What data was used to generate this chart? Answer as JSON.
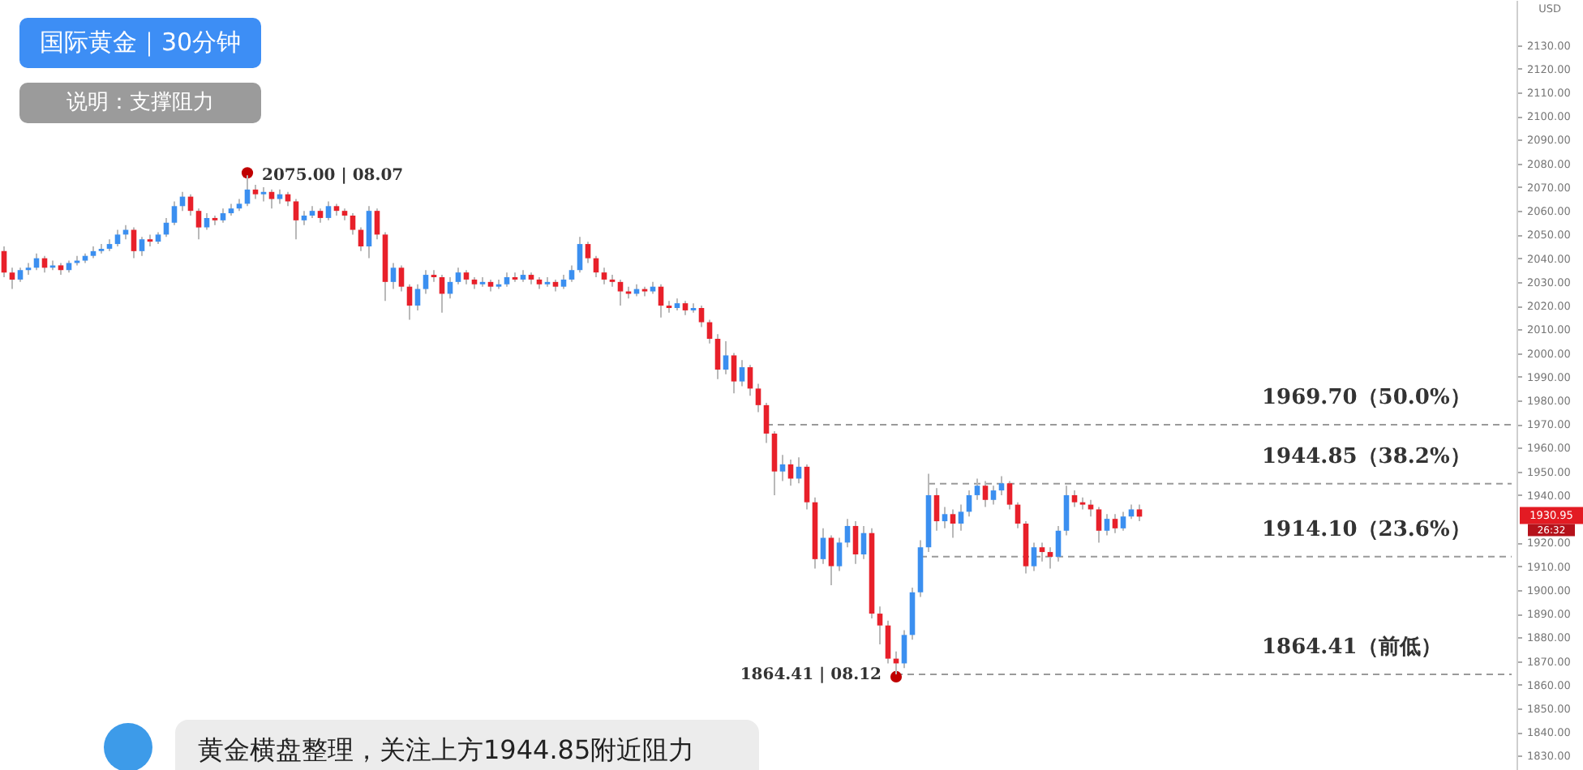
{
  "chart_data": {
    "type": "candlestick",
    "title": "国际黄金｜30分钟",
    "subtitle": "说明：支撑阻力",
    "ylabel": "USD",
    "categories": [
      null,
      null,
      null,
      null,
      null,
      null,
      null,
      null,
      null,
      null,
      null,
      null,
      null,
      null,
      null,
      null,
      null,
      null,
      null,
      null,
      null,
      null,
      null,
      null,
      null,
      null,
      null,
      null,
      null,
      null,
      null,
      null,
      null,
      null,
      null,
      null,
      null,
      null,
      null,
      null,
      null,
      null,
      null,
      null,
      null,
      null,
      null,
      null,
      null,
      null,
      null,
      null,
      null,
      null,
      null,
      null,
      null,
      null,
      null,
      null,
      null,
      null,
      null,
      null,
      null,
      null,
      null,
      null,
      null,
      null,
      null,
      null,
      null,
      null,
      null,
      null,
      null,
      null,
      null,
      null,
      null,
      null,
      null,
      null,
      null,
      null,
      null,
      null,
      null,
      null,
      null,
      null,
      null,
      null,
      null,
      null,
      null,
      null,
      null,
      null,
      null,
      null,
      null,
      null,
      null,
      null,
      null,
      null,
      null,
      null,
      null,
      null,
      null,
      null,
      null,
      null,
      null,
      null,
      null,
      null,
      null,
      null,
      null,
      null,
      null,
      null,
      null,
      null,
      null,
      null,
      null,
      null,
      null,
      null,
      null,
      null,
      null,
      null,
      null,
      null,
      null,
      null,
      null,
      null,
      null,
      null,
      null,
      null,
      null,
      null,
      null,
      null,
      null,
      null,
      null,
      null,
      null,
      null,
      null,
      null,
      null,
      null,
      null,
      null,
      null,
      null,
      null,
      null,
      null,
      null,
      null,
      null,
      null,
      null,
      null,
      null,
      null,
      null,
      null,
      null,
      null,
      null,
      null,
      null,
      null,
      null,
      null
    ],
    "ohlc": [
      [
        2043,
        2045,
        2032,
        2034
      ],
      [
        2034,
        2036,
        2027,
        2031
      ],
      [
        2031,
        2036,
        2030,
        2035
      ],
      [
        2035,
        2038,
        2033,
        2036
      ],
      [
        2036,
        2042,
        2035,
        2040
      ],
      [
        2040,
        2041,
        2034,
        2036
      ],
      [
        2036,
        2039,
        2035,
        2037
      ],
      [
        2037,
        2038,
        2033,
        2035
      ],
      [
        2035,
        2039,
        2034,
        2038
      ],
      [
        2038,
        2041,
        2037,
        2039
      ],
      [
        2039,
        2042,
        2038,
        2041
      ],
      [
        2041,
        2045,
        2040,
        2043
      ],
      [
        2043,
        2046,
        2042,
        2044
      ],
      [
        2044,
        2048,
        2043,
        2046
      ],
      [
        2046,
        2052,
        2045,
        2050
      ],
      [
        2050,
        2054,
        2048,
        2052
      ],
      [
        2052,
        2053,
        2040,
        2043
      ],
      [
        2043,
        2049,
        2041,
        2048
      ],
      [
        2048,
        2050,
        2045,
        2047
      ],
      [
        2047,
        2051,
        2046,
        2050
      ],
      [
        2050,
        2057,
        2049,
        2055
      ],
      [
        2055,
        2064,
        2054,
        2062
      ],
      [
        2062,
        2068,
        2060,
        2066
      ],
      [
        2066,
        2067,
        2058,
        2060
      ],
      [
        2060,
        2061,
        2048,
        2053
      ],
      [
        2053,
        2059,
        2052,
        2057
      ],
      [
        2057,
        2058,
        2054,
        2056
      ],
      [
        2056,
        2061,
        2055,
        2059
      ],
      [
        2059,
        2063,
        2058,
        2061
      ],
      [
        2061,
        2065,
        2060,
        2063
      ],
      [
        2063,
        2075,
        2062,
        2069
      ],
      [
        2069,
        2071,
        2065,
        2067
      ],
      [
        2067,
        2070,
        2064,
        2068
      ],
      [
        2068,
        2069,
        2061,
        2065
      ],
      [
        2065,
        2069,
        2063,
        2067
      ],
      [
        2067,
        2068,
        2062,
        2064
      ],
      [
        2064,
        2065,
        2048,
        2056
      ],
      [
        2056,
        2060,
        2054,
        2058
      ],
      [
        2058,
        2062,
        2057,
        2060
      ],
      [
        2060,
        2061,
        2055,
        2057
      ],
      [
        2057,
        2064,
        2056,
        2062
      ],
      [
        2062,
        2063,
        2058,
        2060
      ],
      [
        2060,
        2061,
        2056,
        2058
      ],
      [
        2058,
        2059,
        2050,
        2052
      ],
      [
        2052,
        2053,
        2043,
        2045
      ],
      [
        2045,
        2062,
        2040,
        2060
      ],
      [
        2060,
        2061,
        2048,
        2050
      ],
      [
        2050,
        2051,
        2022,
        2030
      ],
      [
        2030,
        2038,
        2027,
        2036
      ],
      [
        2036,
        2037,
        2026,
        2028
      ],
      [
        2028,
        2029,
        2014,
        2020
      ],
      [
        2020,
        2029,
        2018,
        2027
      ],
      [
        2027,
        2035,
        2025,
        2033
      ],
      [
        2033,
        2035,
        2030,
        2032
      ],
      [
        2032,
        2033,
        2017,
        2025
      ],
      [
        2025,
        2032,
        2023,
        2030
      ],
      [
        2030,
        2036,
        2029,
        2034
      ],
      [
        2034,
        2035,
        2029,
        2031
      ],
      [
        2031,
        2032,
        2027,
        2029
      ],
      [
        2029,
        2032,
        2028,
        2030
      ],
      [
        2030,
        2031,
        2026,
        2028
      ],
      [
        2028,
        2031,
        2027,
        2029
      ],
      [
        2029,
        2034,
        2028,
        2032
      ],
      [
        2032,
        2034,
        2030,
        2031
      ],
      [
        2031,
        2035,
        2030,
        2033
      ],
      [
        2033,
        2034,
        2029,
        2031
      ],
      [
        2031,
        2032,
        2027,
        2029
      ],
      [
        2029,
        2032,
        2028,
        2030
      ],
      [
        2030,
        2031,
        2026,
        2028
      ],
      [
        2028,
        2033,
        2027,
        2031
      ],
      [
        2031,
        2037,
        2030,
        2035
      ],
      [
        2035,
        2049,
        2034,
        2046
      ],
      [
        2046,
        2047,
        2038,
        2040
      ],
      [
        2040,
        2041,
        2032,
        2034
      ],
      [
        2034,
        2036,
        2029,
        2031
      ],
      [
        2031,
        2033,
        2028,
        2030
      ],
      [
        2030,
        2031,
        2020,
        2026
      ],
      [
        2026,
        2028,
        2023,
        2025
      ],
      [
        2025,
        2029,
        2024,
        2027
      ],
      [
        2027,
        2028,
        2024,
        2026
      ],
      [
        2026,
        2030,
        2025,
        2028
      ],
      [
        2028,
        2029,
        2015,
        2020
      ],
      [
        2020,
        2022,
        2017,
        2019
      ],
      [
        2019,
        2023,
        2018,
        2021
      ],
      [
        2021,
        2022,
        2016,
        2018
      ],
      [
        2018,
        2021,
        2017,
        2019
      ],
      [
        2019,
        2020,
        2011,
        2013
      ],
      [
        2013,
        2014,
        2004,
        2006
      ],
      [
        2006,
        2008,
        1989,
        1993
      ],
      [
        1993,
        2005,
        1991,
        1999
      ],
      [
        1999,
        2000,
        1983,
        1988
      ],
      [
        1988,
        1997,
        1986,
        1994
      ],
      [
        1994,
        1995,
        1982,
        1985
      ],
      [
        1985,
        1987,
        1975,
        1978
      ],
      [
        1978,
        1979,
        1962,
        1966
      ],
      [
        1966,
        1967,
        1940,
        1950
      ],
      [
        1950,
        1957,
        1946,
        1953
      ],
      [
        1953,
        1955,
        1944,
        1947
      ],
      [
        1947,
        1956,
        1945,
        1952
      ],
      [
        1952,
        1953,
        1934,
        1937
      ],
      [
        1937,
        1939,
        1909,
        1913
      ],
      [
        1913,
        1926,
        1911,
        1922
      ],
      [
        1922,
        1923,
        1902,
        1910
      ],
      [
        1910,
        1922,
        1908,
        1920
      ],
      [
        1920,
        1930,
        1918,
        1927
      ],
      [
        1927,
        1929,
        1911,
        1915
      ],
      [
        1915,
        1927,
        1913,
        1924
      ],
      [
        1924,
        1926,
        1888,
        1890
      ],
      [
        1890,
        1893,
        1877,
        1885
      ],
      [
        1885,
        1887,
        1869,
        1871
      ],
      [
        1871,
        1874,
        1864.41,
        1869
      ],
      [
        1869,
        1883,
        1867,
        1881
      ],
      [
        1881,
        1901,
        1879,
        1899
      ],
      [
        1899,
        1921,
        1897,
        1918
      ],
      [
        1918,
        1949,
        1916,
        1940
      ],
      [
        1940,
        1943,
        1925,
        1929
      ],
      [
        1929,
        1935,
        1926,
        1932
      ],
      [
        1932,
        1934,
        1922,
        1928
      ],
      [
        1928,
        1936,
        1925,
        1933
      ],
      [
        1933,
        1942,
        1931,
        1940
      ],
      [
        1940,
        1947,
        1938,
        1944
      ],
      [
        1944,
        1946,
        1935,
        1938
      ],
      [
        1938,
        1944,
        1936,
        1942
      ],
      [
        1942,
        1948,
        1940,
        1945
      ],
      [
        1945,
        1946,
        1934,
        1936
      ],
      [
        1936,
        1937,
        1926,
        1928
      ],
      [
        1928,
        1929,
        1907,
        1910
      ],
      [
        1910,
        1920,
        1908,
        1918
      ],
      [
        1918,
        1920,
        1912,
        1916
      ],
      [
        1916,
        1918,
        1909,
        1914
      ],
      [
        1914,
        1927,
        1912,
        1925
      ],
      [
        1925,
        1944,
        1923,
        1940
      ],
      [
        1940,
        1942,
        1935,
        1937
      ],
      [
        1937,
        1939,
        1934,
        1936
      ],
      [
        1936,
        1938,
        1931,
        1934
      ],
      [
        1934,
        1935,
        1920,
        1925
      ],
      [
        1925,
        1932,
        1923,
        1930
      ],
      [
        1930,
        1932,
        1924,
        1926
      ],
      [
        1926,
        1933,
        1925,
        1931
      ],
      [
        1931,
        1936,
        1930,
        1934
      ],
      [
        1934,
        1936,
        1929,
        1930.95
      ],
      null,
      null,
      null,
      null,
      null,
      null,
      null,
      null,
      null,
      null,
      null,
      null,
      null,
      null,
      null,
      null,
      null,
      null,
      null,
      null,
      null,
      null,
      null,
      null,
      null,
      null,
      null,
      null,
      null,
      null,
      null,
      null,
      null,
      null,
      null,
      null,
      null,
      null,
      null,
      null,
      null,
      null,
      null,
      null,
      null,
      null
    ],
    "colors": [
      "#e8202a",
      "#e8202a",
      "#3b8ff0",
      "#3b8ff0",
      "#3b8ff0",
      "#e8202a",
      "#3b8ff0",
      "#e8202a",
      "#3b8ff0",
      "#3b8ff0",
      "#3b8ff0",
      "#3b8ff0",
      "#3b8ff0",
      "#3b8ff0",
      "#3b8ff0",
      "#3b8ff0",
      "#e8202a",
      "#3b8ff0",
      "#e8202a",
      "#3b8ff0",
      "#3b8ff0",
      "#3b8ff0",
      "#3b8ff0",
      "#e8202a",
      "#e8202a",
      "#3b8ff0",
      "#e8202a",
      "#3b8ff0",
      "#3b8ff0",
      "#3b8ff0",
      "#3b8ff0",
      "#e8202a",
      "#3b8ff0",
      "#e8202a",
      "#3b8ff0",
      "#e8202a",
      "#e8202a",
      "#3b8ff0",
      "#3b8ff0",
      "#e8202a",
      "#3b8ff0",
      "#e8202a",
      "#e8202a",
      "#e8202a",
      "#e8202a",
      "#3b8ff0",
      "#e8202a",
      "#e8202a",
      "#3b8ff0",
      "#e8202a",
      "#e8202a",
      "#3b8ff0",
      "#3b8ff0",
      "#e8202a",
      "#e8202a",
      "#3b8ff0",
      "#3b8ff0",
      "#e8202a",
      "#e8202a",
      "#3b8ff0",
      "#e8202a",
      "#3b8ff0",
      "#3b8ff0",
      "#e8202a",
      "#3b8ff0",
      "#e8202a",
      "#e8202a",
      "#3b8ff0",
      "#e8202a",
      "#3b8ff0",
      "#3b8ff0",
      "#3b8ff0",
      "#e8202a",
      "#e8202a",
      "#e8202a",
      "#e8202a",
      "#e8202a",
      "#e8202a",
      "#3b8ff0",
      "#e8202a",
      "#3b8ff0",
      "#e8202a",
      "#e8202a",
      "#3b8ff0",
      "#e8202a",
      "#3b8ff0",
      "#e8202a",
      "#e8202a",
      "#e8202a",
      "#3b8ff0",
      "#e8202a",
      "#3b8ff0",
      "#e8202a",
      "#e8202a",
      "#e8202a",
      "#e8202a",
      "#3b8ff0",
      "#e8202a",
      "#3b8ff0",
      "#e8202a",
      "#e8202a",
      "#3b8ff0",
      "#e8202a",
      "#3b8ff0",
      "#3b8ff0",
      "#e8202a",
      "#3b8ff0",
      "#e8202a",
      "#e8202a",
      "#e8202a",
      "#e8202a",
      "#3b8ff0",
      "#3b8ff0",
      "#3b8ff0",
      "#3b8ff0",
      "#e8202a",
      "#3b8ff0",
      "#e8202a",
      "#3b8ff0",
      "#3b8ff0",
      "#3b8ff0",
      "#e8202a",
      "#3b8ff0",
      "#3b8ff0",
      "#e8202a",
      "#e8202a",
      "#e8202a",
      "#3b8ff0",
      "#e8202a",
      "#e8202a",
      "#3b8ff0",
      "#3b8ff0",
      "#e8202a",
      "#e8202a",
      "#e8202a",
      "#e8202a",
      "#3b8ff0",
      "#e8202a",
      "#3b8ff0",
      "#3b8ff0",
      "#e8202a",
      null,
      null,
      null,
      null,
      null,
      null,
      null,
      null,
      null,
      null,
      null,
      null,
      null,
      null,
      null,
      null,
      null,
      null,
      null,
      null,
      null,
      null,
      null,
      null,
      null,
      null,
      null,
      null,
      null,
      null,
      null,
      null,
      null,
      null,
      null,
      null,
      null,
      null,
      null,
      null,
      null,
      null,
      null,
      null,
      null,
      null
    ],
    "ylim": [
      1824,
      2149
    ],
    "yticks": [
      {
        "value": 1830,
        "label": "1830.00"
      },
      {
        "value": 1840,
        "label": "1840.00"
      },
      {
        "value": 1850,
        "label": "1850.00"
      },
      {
        "value": 1860,
        "label": "1860.00"
      },
      {
        "value": 1870,
        "label": "1870.00"
      },
      {
        "value": 1880,
        "label": "1880.00"
      },
      {
        "value": 1890,
        "label": "1890.00"
      },
      {
        "value": 1900,
        "label": "1900.00"
      },
      {
        "value": 1910,
        "label": "1910.00"
      },
      {
        "value": 1920,
        "label": "1920.00"
      },
      {
        "value": 1940,
        "label": "1940.00"
      },
      {
        "value": 1950,
        "label": "1950.00"
      },
      {
        "value": 1960,
        "label": "1960.00"
      },
      {
        "value": 1970,
        "label": "1970.00"
      },
      {
        "value": 1980,
        "label": "1980.00"
      },
      {
        "value": 1990,
        "label": "1990.00"
      },
      {
        "value": 2000,
        "label": "2000.00"
      },
      {
        "value": 2010,
        "label": "2010.00"
      },
      {
        "value": 2020,
        "label": "2020.00"
      },
      {
        "value": 2030,
        "label": "2030.00"
      },
      {
        "value": 2040,
        "label": "2040.00"
      },
      {
        "value": 2050,
        "label": "2050.00"
      },
      {
        "value": 2060,
        "label": "2060.00"
      },
      {
        "value": 2070,
        "label": "2070.00"
      },
      {
        "value": 2080,
        "label": "2080.00"
      },
      {
        "value": 2090,
        "label": "2090.00"
      },
      {
        "value": 2100,
        "label": "2100.00"
      },
      {
        "value": 2110,
        "label": "2110.00"
      },
      {
        "value": 2120,
        "label": "2120.00"
      },
      {
        "value": 2130,
        "label": "2130.00"
      }
    ],
    "tick_labels": "y",
    "ref_lines": [
      {
        "axis": "y",
        "value": 1969.7,
        "label": "1969.70（50.0%）",
        "color": "#9a9a9a",
        "line_style": "dashed"
      },
      {
        "axis": "y",
        "value": 1944.85,
        "label": "1944.85（38.2%）",
        "color": "#9a9a9a",
        "line_style": "dashed"
      },
      {
        "axis": "y",
        "value": 1914.1,
        "label": "1914.10（23.6%）",
        "color": "#9a9a9a",
        "line_style": "dashed"
      },
      {
        "axis": "y",
        "value": 1864.41,
        "label": "1864.41（前低）",
        "color": "#9a9a9a",
        "line_style": "dashed"
      }
    ],
    "annotations": [
      "2075.00 | 08.07",
      "1864.41 | 08.12",
      "1930.95",
      "26:32",
      "黄金横盘整理，关注上方1944.85附近阻力"
    ]
  }
}
